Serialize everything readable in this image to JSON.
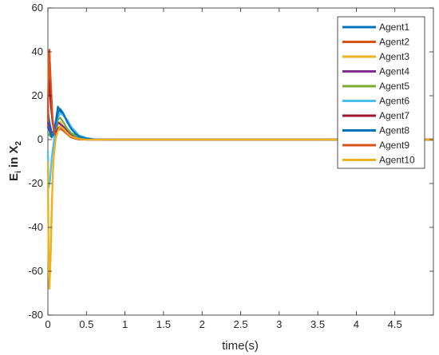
{
  "chart_data": {
    "type": "line",
    "xlabel": "time(s)",
    "ylabel_main": "E",
    "ylabel_sub_i": "i",
    "ylabel_mid": " in X",
    "ylabel_sub_2": "2",
    "xlim": [
      0,
      5
    ],
    "ylim": [
      -80,
      60
    ],
    "xticks": [
      0,
      0.5,
      1,
      1.5,
      2,
      2.5,
      3,
      3.5,
      4,
      4.5
    ],
    "xtick_labels": [
      "0",
      "0.5",
      "1",
      "1.5",
      "2",
      "2.5",
      "3",
      "3.5",
      "4",
      "4.5"
    ],
    "yticks": [
      -80,
      -60,
      -40,
      -20,
      0,
      20,
      40,
      60
    ],
    "ytick_labels": [
      "-80",
      "-60",
      "-40",
      "-20",
      "0",
      "20",
      "40",
      "60"
    ],
    "grid": false,
    "legend_position": "top-right",
    "series": [
      {
        "name": "Agent1",
        "color": "#0072BD",
        "x": [
          0,
          0.02,
          0.05,
          0.08,
          0.1,
          0.13,
          0.16,
          0.2,
          0.25,
          0.3,
          0.35,
          0.4,
          0.5,
          0.6,
          0.8,
          1.0,
          5.0
        ],
        "y": [
          13,
          8,
          3,
          4,
          8,
          15,
          13,
          11,
          9,
          6,
          3,
          1.5,
          0.5,
          0.2,
          0,
          0,
          0
        ]
      },
      {
        "name": "Agent2",
        "color": "#D95319",
        "x": [
          0,
          0.01,
          0.02,
          0.03,
          0.05,
          0.08,
          0.1,
          0.13,
          0.16,
          0.2,
          0.25,
          0.3,
          0.35,
          0.4,
          0.5,
          0.6,
          1.0,
          5.0
        ],
        "y": [
          5,
          40,
          41,
          30,
          12,
          3,
          2,
          5,
          6,
          5,
          3,
          1.5,
          0.5,
          0,
          0,
          0,
          0,
          0
        ]
      },
      {
        "name": "Agent3",
        "color": "#EDB120",
        "x": [
          0,
          0.01,
          0.02,
          0.04,
          0.06,
          0.08,
          0.1,
          0.13,
          0.16,
          0.2,
          0.25,
          0.3,
          0.4,
          0.5,
          0.6,
          1.0,
          5.0
        ],
        "y": [
          -20,
          -60,
          -68,
          -50,
          -20,
          -4,
          2,
          7,
          8,
          6,
          4,
          2,
          0.5,
          0,
          0,
          0,
          0
        ]
      },
      {
        "name": "Agent4",
        "color": "#7E2F8E",
        "x": [
          0,
          0.02,
          0.05,
          0.08,
          0.1,
          0.13,
          0.16,
          0.2,
          0.25,
          0.3,
          0.4,
          0.5,
          0.7,
          1.0,
          5.0
        ],
        "y": [
          8,
          6,
          2,
          2,
          5,
          8,
          7,
          6,
          4,
          2,
          0.5,
          0.2,
          0,
          0,
          0
        ]
      },
      {
        "name": "Agent5",
        "color": "#77AC30",
        "x": [
          0,
          0.02,
          0.05,
          0.08,
          0.1,
          0.13,
          0.16,
          0.2,
          0.25,
          0.3,
          0.4,
          0.5,
          0.7,
          1.0,
          5.0
        ],
        "y": [
          3,
          2,
          1,
          3,
          6,
          9,
          10,
          8,
          5,
          3,
          1,
          0.3,
          0,
          0,
          0
        ]
      },
      {
        "name": "Agent6",
        "color": "#4DBEEE",
        "x": [
          0,
          0.01,
          0.03,
          0.05,
          0.08,
          0.1,
          0.13,
          0.16,
          0.2,
          0.25,
          0.3,
          0.35,
          0.4,
          0.5,
          0.6,
          0.8,
          1.0,
          5.0
        ],
        "y": [
          -5,
          -22,
          -18,
          -8,
          0,
          6,
          10,
          12,
          11,
          9,
          6,
          4,
          2,
          0.8,
          0.2,
          0,
          0,
          0
        ]
      },
      {
        "name": "Agent7",
        "color": "#A2142F",
        "x": [
          0,
          0.01,
          0.02,
          0.04,
          0.06,
          0.08,
          0.1,
          0.13,
          0.16,
          0.2,
          0.25,
          0.3,
          0.4,
          0.5,
          0.7,
          1.0,
          5.0
        ],
        "y": [
          10,
          28,
          25,
          15,
          8,
          4,
          3,
          5,
          6,
          5,
          3,
          1.5,
          0.3,
          0,
          0,
          0,
          0
        ]
      },
      {
        "name": "Agent8",
        "color": "#0072BD",
        "x": [
          0,
          0.02,
          0.05,
          0.08,
          0.1,
          0.13,
          0.16,
          0.2,
          0.25,
          0.3,
          0.35,
          0.4,
          0.5,
          0.6,
          0.8,
          1.0,
          5.0
        ],
        "y": [
          6,
          4,
          1,
          3,
          7,
          12,
          14,
          12,
          8,
          5,
          3,
          1.5,
          0.5,
          0.1,
          0,
          0,
          0
        ]
      },
      {
        "name": "Agent9",
        "color": "#D95319",
        "x": [
          0,
          0.01,
          0.02,
          0.04,
          0.06,
          0.08,
          0.1,
          0.13,
          0.16,
          0.2,
          0.25,
          0.3,
          0.4,
          0.5,
          0.7,
          1.0,
          5.0
        ],
        "y": [
          8,
          38,
          40,
          25,
          10,
          4,
          2,
          4,
          5,
          4,
          2.5,
          1,
          0.2,
          0,
          0,
          0,
          0
        ]
      },
      {
        "name": "Agent10",
        "color": "#EDB120",
        "x": [
          0,
          0.01,
          0.02,
          0.03,
          0.05,
          0.07,
          0.1,
          0.13,
          0.16,
          0.2,
          0.25,
          0.3,
          0.4,
          0.5,
          0.7,
          1.0,
          5.0
        ],
        "y": [
          -10,
          -55,
          -68,
          -55,
          -30,
          -10,
          0,
          4,
          6,
          5,
          3,
          1.5,
          0.3,
          0,
          0,
          0,
          0
        ]
      }
    ]
  }
}
